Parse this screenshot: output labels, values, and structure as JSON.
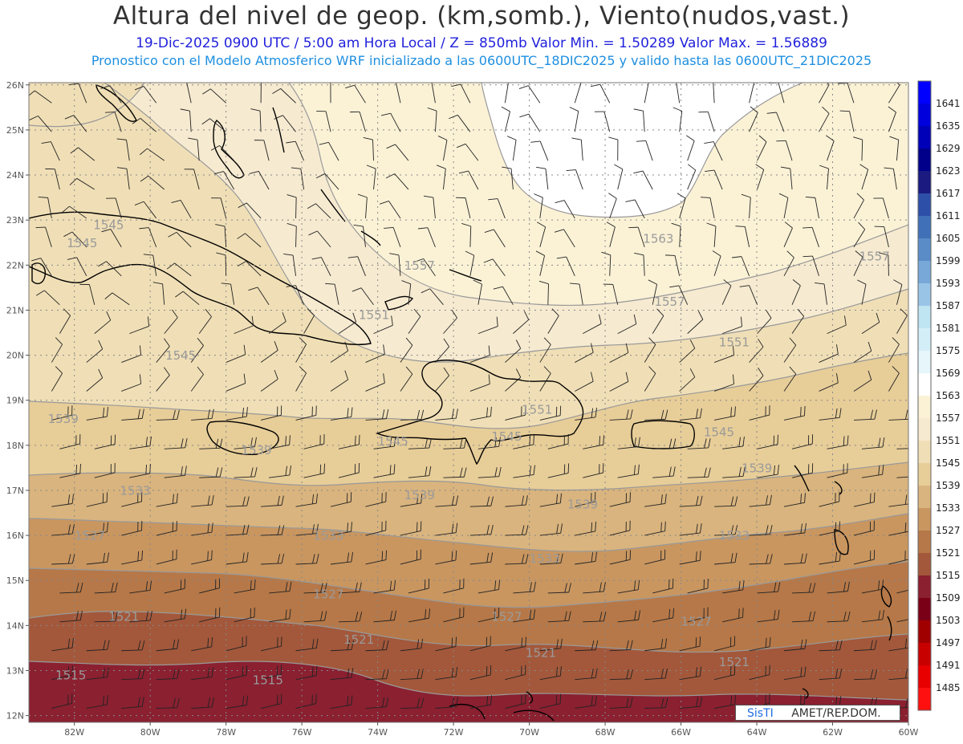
{
  "header": {
    "title": "Altura del nivel de geop. (km,somb.), Viento(nudos,vast.)",
    "subtitle_line1": "19-Dic-2025   0900 UTC / 5:00 am Hora Local / Z = 850mb     Valor Min. = 1.50289   Valor Max. = 1.56889",
    "subtitle_line2": "Pronostico con el Modelo Atmosferico WRF inicializado a las 0600UTC_18DIC2025 y valido hasta las  0600UTC_21DIC2025"
  },
  "axes": {
    "lat_labels": [
      "26N",
      "25N",
      "24N",
      "23N",
      "22N",
      "21N",
      "20N",
      "19N",
      "18N",
      "17N",
      "16N",
      "15N",
      "14N",
      "13N",
      "12N"
    ],
    "lon_labels": [
      "82W",
      "80W",
      "78W",
      "76W",
      "74W",
      "72W",
      "70W",
      "68W",
      "66W",
      "64W",
      "62W",
      "60W"
    ]
  },
  "colorbar": {
    "levels": [
      "1641",
      "1635",
      "1629",
      "1623",
      "1617",
      "1611",
      "1605",
      "1599",
      "1593",
      "1587",
      "1581",
      "1575",
      "1569",
      "1563",
      "1557",
      "1551",
      "1545",
      "1539",
      "1533",
      "1527",
      "1521",
      "1515",
      "1509",
      "1503",
      "1497",
      "1491",
      "1485"
    ],
    "colors": [
      "#0000ff",
      "#0000dd",
      "#0000b8",
      "#00008a",
      "#1a1a80",
      "#2e4fa8",
      "#4070b8",
      "#5a8cc8",
      "#78a8d8",
      "#9ac4e6",
      "#bfe4f2",
      "#d4eef8",
      "#e6f6fb",
      "#ffffff",
      "#fbf2d6",
      "#f6ead0",
      "#f0dfb6",
      "#e7cd98",
      "#d9b47e",
      "#c99660",
      "#b67848",
      "#a3583b",
      "#8a2030",
      "#7a0018",
      "#a00000",
      "#c80000",
      "#e80000",
      "#ff1010"
    ]
  },
  "contour_labels": [
    {
      "text": "1545",
      "lon": -81.5,
      "lat": 22.8
    },
    {
      "text": "1545",
      "lon": -82.2,
      "lat": 22.4
    },
    {
      "text": "1557",
      "lon": -73.3,
      "lat": 21.9
    },
    {
      "text": "1563",
      "lon": -67.0,
      "lat": 22.5
    },
    {
      "text": "1557",
      "lon": -61.3,
      "lat": 22.1
    },
    {
      "text": "1551",
      "lon": -74.5,
      "lat": 20.8
    },
    {
      "text": "1557",
      "lon": -66.7,
      "lat": 21.1
    },
    {
      "text": "1551",
      "lon": -65.0,
      "lat": 20.2
    },
    {
      "text": "1545",
      "lon": -79.6,
      "lat": 19.9
    },
    {
      "text": "1551",
      "lon": -70.2,
      "lat": 18.7
    },
    {
      "text": "1539",
      "lon": -82.7,
      "lat": 18.5
    },
    {
      "text": "1545",
      "lon": -74.0,
      "lat": 18.0
    },
    {
      "text": "1545",
      "lon": -71.0,
      "lat": 18.1
    },
    {
      "text": "1545",
      "lon": -65.4,
      "lat": 18.2
    },
    {
      "text": "1539",
      "lon": -77.6,
      "lat": 17.8
    },
    {
      "text": "1539",
      "lon": -64.4,
      "lat": 17.4
    },
    {
      "text": "1533",
      "lon": -80.8,
      "lat": 16.9
    },
    {
      "text": "1539",
      "lon": -73.3,
      "lat": 16.8
    },
    {
      "text": "1539",
      "lon": -69.0,
      "lat": 16.6
    },
    {
      "text": "1527",
      "lon": -82.0,
      "lat": 15.9
    },
    {
      "text": "1533",
      "lon": -75.7,
      "lat": 15.9
    },
    {
      "text": "1533",
      "lon": -65.0,
      "lat": 15.9
    },
    {
      "text": "1533",
      "lon": -70.0,
      "lat": 15.4
    },
    {
      "text": "1527",
      "lon": -75.7,
      "lat": 14.6
    },
    {
      "text": "1521",
      "lon": -81.1,
      "lat": 14.1
    },
    {
      "text": "1527",
      "lon": -71.0,
      "lat": 14.1
    },
    {
      "text": "1527",
      "lon": -66.0,
      "lat": 14.0
    },
    {
      "text": "1521",
      "lon": -74.9,
      "lat": 13.6
    },
    {
      "text": "1521",
      "lon": -70.1,
      "lat": 13.3
    },
    {
      "text": "1521",
      "lon": -65.0,
      "lat": 13.1
    },
    {
      "text": "1515",
      "lon": -82.5,
      "lat": 12.8
    },
    {
      "text": "1515",
      "lon": -77.3,
      "lat": 12.7
    }
  ],
  "credit": {
    "prefix": "SisTI",
    "suffix": "AMET/REP.DOM."
  }
}
